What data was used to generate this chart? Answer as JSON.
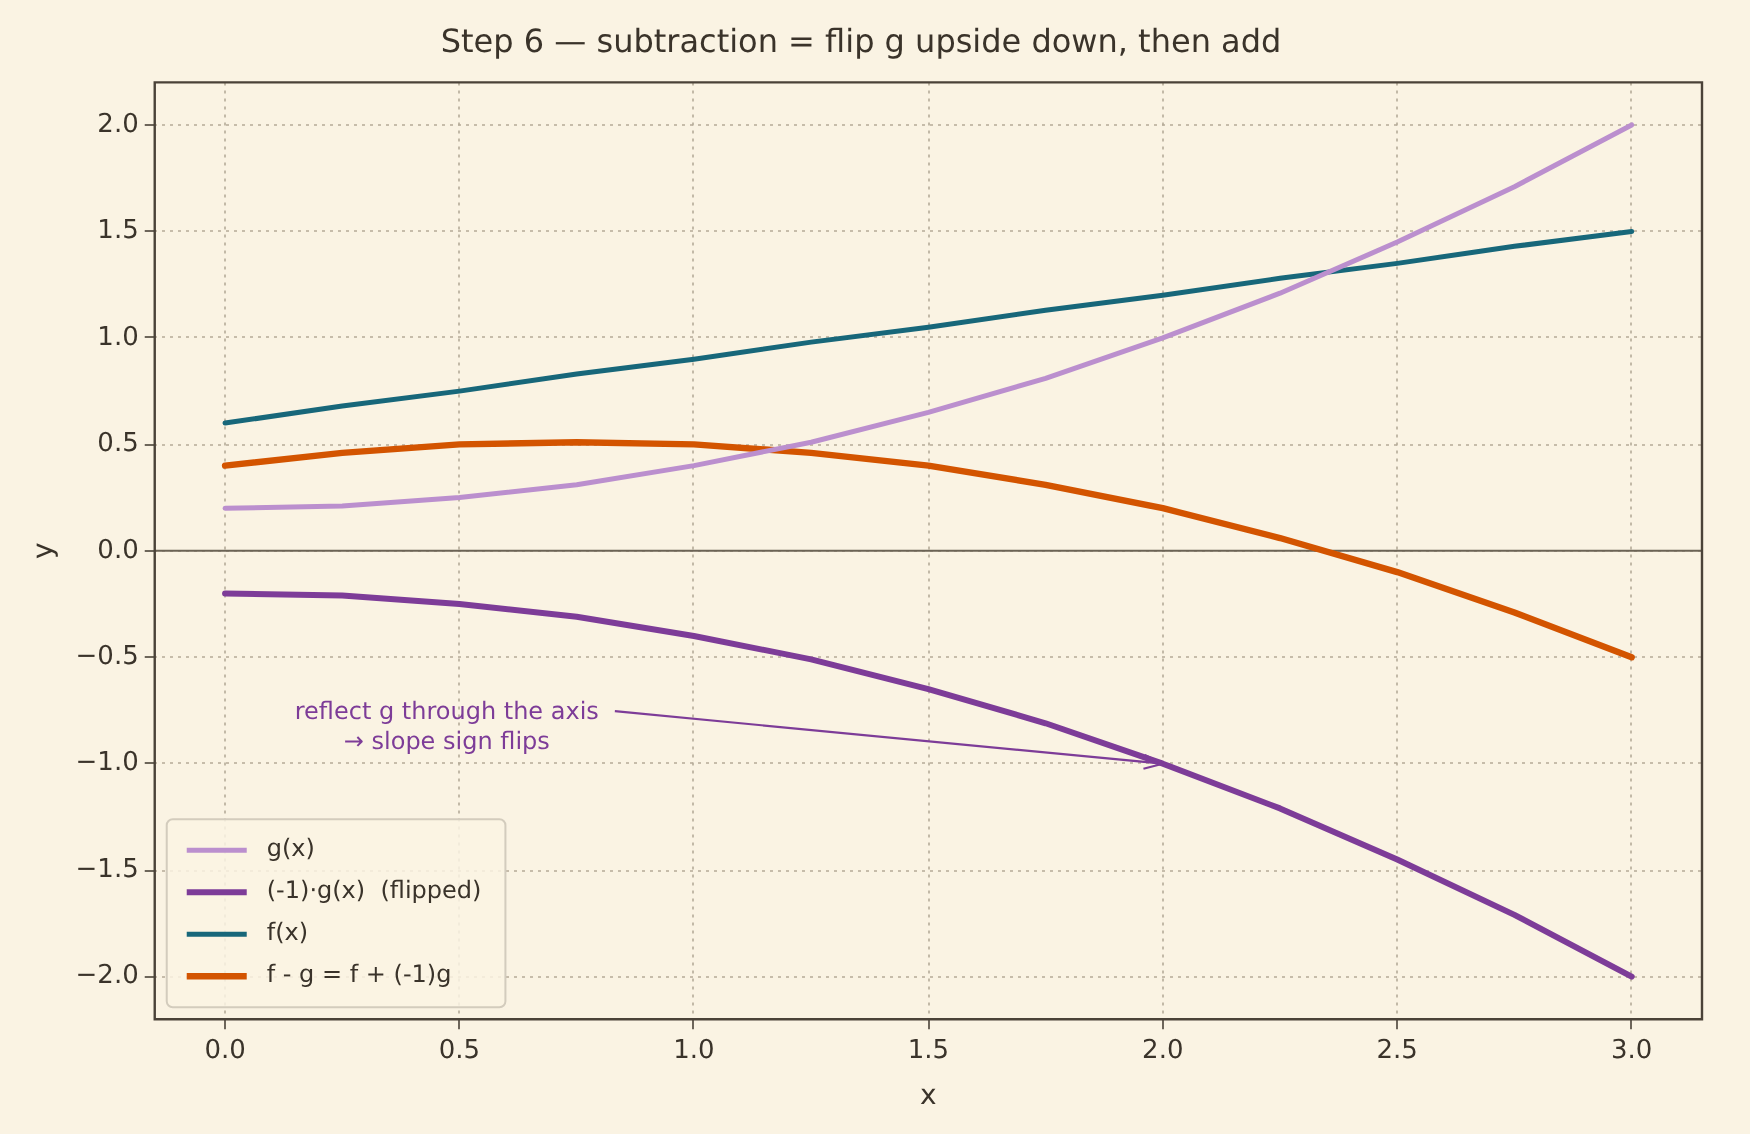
{
  "chart_data": {
    "type": "line",
    "title": "Step 6 — subtraction = flip g upside down, then add",
    "xlabel": "x",
    "ylabel": "y",
    "x": [
      0,
      0.25,
      0.5,
      0.75,
      1,
      1.25,
      1.5,
      1.75,
      2,
      2.25,
      2.5,
      2.75,
      3
    ],
    "series": [
      {
        "name": "g(x)",
        "color": "#bb8fce",
        "values": [
          0.2,
          0.21,
          0.25,
          0.31,
          0.4,
          0.51,
          0.65,
          0.81,
          1.0,
          1.21,
          1.45,
          1.71,
          2.0
        ]
      },
      {
        "name": "(-1)·g(x)  (flipped)",
        "color": "#7d3c98",
        "values": [
          -0.2,
          -0.21,
          -0.25,
          -0.31,
          -0.4,
          -0.51,
          -0.65,
          -0.81,
          -1.0,
          -1.21,
          -1.45,
          -1.71,
          -2.0
        ]
      },
      {
        "name": "f(x)",
        "color": "#17677a",
        "values": [
          0.6,
          0.68,
          0.75,
          0.83,
          0.9,
          0.98,
          1.05,
          1.13,
          1.2,
          1.28,
          1.35,
          1.43,
          1.5
        ]
      },
      {
        "name": "f - g = f + (-1)g",
        "color": "#d35400",
        "values": [
          0.4,
          0.46,
          0.5,
          0.51,
          0.5,
          0.46,
          0.4,
          0.31,
          0.2,
          0.06,
          -0.1,
          -0.29,
          -0.5
        ]
      }
    ],
    "xlim": [
      -0.15,
      3.15
    ],
    "ylim": [
      -2.2,
      2.2
    ],
    "xticks": [
      {
        "value": 0,
        "label": "0.0"
      },
      {
        "value": 0.5,
        "label": "0.5"
      },
      {
        "value": 1,
        "label": "1.0"
      },
      {
        "value": 1.5,
        "label": "1.5"
      },
      {
        "value": 2,
        "label": "2.0"
      },
      {
        "value": 2.5,
        "label": "2.5"
      },
      {
        "value": 3,
        "label": "3.0"
      }
    ],
    "yticks": [
      {
        "value": -2,
        "label": "−2.0"
      },
      {
        "value": -1.5,
        "label": "−1.5"
      },
      {
        "value": -1,
        "label": "−1.0"
      },
      {
        "value": -0.5,
        "label": "−0.5"
      },
      {
        "value": 0,
        "label": "0.0"
      },
      {
        "value": 0.5,
        "label": "0.5"
      },
      {
        "value": 1,
        "label": "1.0"
      },
      {
        "value": 1.5,
        "label": "1.5"
      },
      {
        "value": 2,
        "label": "2.0"
      }
    ],
    "ref_lines": [
      {
        "axis": "y",
        "value": 0,
        "color": "#6b6355"
      }
    ],
    "annotations": [
      {
        "text": "reflect g through the axis\n→ slope sign flips",
        "x": 2,
        "y": -1
      }
    ],
    "grid": true,
    "line_style": "solid",
    "marker": "none",
    "legend": "bottom left"
  }
}
